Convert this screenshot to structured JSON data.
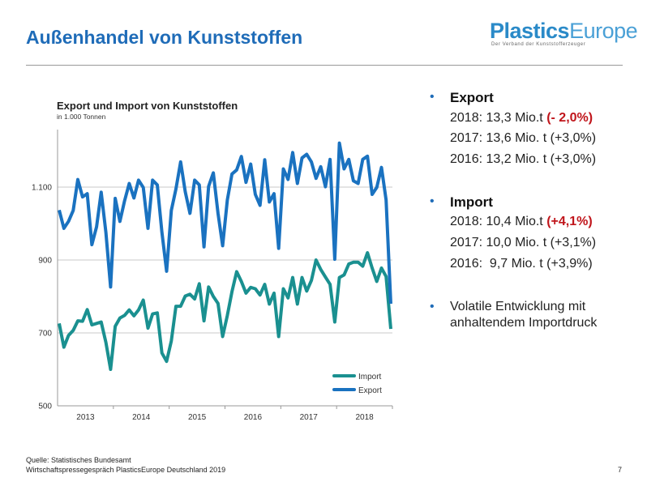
{
  "header": {
    "title": "Außenhandel von Kunststoffen",
    "logo_main": "Plastics",
    "logo_accent": "Europe",
    "logo_tagline": "Der Verband der Kunststofferzeuger"
  },
  "chart_data": {
    "type": "line",
    "title": "Export und Import von Kunststoffen",
    "subtitle": "in 1.000 Tonnen",
    "xlabel": "",
    "ylabel": "",
    "x_tick_labels": [
      "2013",
      "2014",
      "2015",
      "2016",
      "2017",
      "2018"
    ],
    "y_tick_labels": [
      "500",
      "700",
      "900",
      "1.100"
    ],
    "y_ticks": [
      500,
      700,
      900,
      1100
    ],
    "ylim": [
      500,
      1250
    ],
    "x_unit": "month, Jan 2013 - Dec 2018",
    "grid": "horizontal",
    "legend_position": "bottom-right",
    "series": [
      {
        "name": "Import",
        "color": "#1a9090",
        "values": [
          726,
          661,
          693,
          707,
          733,
          732,
          764,
          722,
          726,
          730,
          674,
          600,
          718,
          741,
          748,
          763,
          747,
          763,
          790,
          713,
          752,
          755,
          645,
          622,
          678,
          773,
          773,
          801,
          806,
          793,
          835,
          733,
          826,
          800,
          781,
          690,
          748,
          813,
          868,
          841,
          809,
          825,
          821,
          804,
          833,
          779,
          809,
          690,
          821,
          796,
          852,
          779,
          852,
          815,
          844,
          900,
          874,
          853,
          833,
          730,
          852,
          859,
          889,
          894,
          894,
          883,
          920,
          878,
          841,
          878,
          855,
          711
        ]
      },
      {
        "name": "Export",
        "color": "#1a72c0",
        "values": [
          1037,
          987,
          1006,
          1036,
          1121,
          1073,
          1082,
          942,
          991,
          1086,
          976,
          826,
          1069,
          1006,
          1062,
          1110,
          1070,
          1119,
          1099,
          987,
          1119,
          1106,
          976,
          869,
          1036,
          1095,
          1169,
          1087,
          1028,
          1119,
          1106,
          936,
          1102,
          1139,
          1028,
          939,
          1065,
          1136,
          1147,
          1184,
          1113,
          1163,
          1080,
          1050,
          1175,
          1059,
          1082,
          932,
          1150,
          1121,
          1195,
          1110,
          1180,
          1190,
          1169,
          1124,
          1156,
          1101,
          1176,
          902,
          1221,
          1150,
          1176,
          1117,
          1110,
          1176,
          1185,
          1080,
          1099,
          1154,
          1065,
          780
        ]
      }
    ]
  },
  "summary": {
    "export": {
      "heading": "Export",
      "lines": [
        {
          "text": "2018: 13,3 Mio.t ",
          "highlight": "(- 2,0%)"
        },
        {
          "text": "2017: 13,6 Mio. t (+3,0%)"
        },
        {
          "text": "2016: 13,2 Mio. t (+3,0%)"
        }
      ]
    },
    "import": {
      "heading": "Import",
      "lines": [
        {
          "text": "2018: 10,4 Mio.t ",
          "highlight": "(+4,1%)"
        },
        {
          "text": "2017: 10,0 Mio. t (+3,1%)"
        },
        {
          "text": "2016:  9,7 Mio. t (+3,9%)"
        }
      ]
    },
    "note_line1": "Volatile Entwicklung mit",
    "note_line2": "anhaltendem Importdruck",
    "bullet": "•",
    "accent_color": "#1f6cb8",
    "highlight_color": "#c0151b"
  },
  "footer": {
    "source": "Quelle: Statistisches Bundesamt",
    "event": "Wirtschaftspressegespräch PlasticsEurope Deutschland 2019",
    "page_number": "7"
  }
}
